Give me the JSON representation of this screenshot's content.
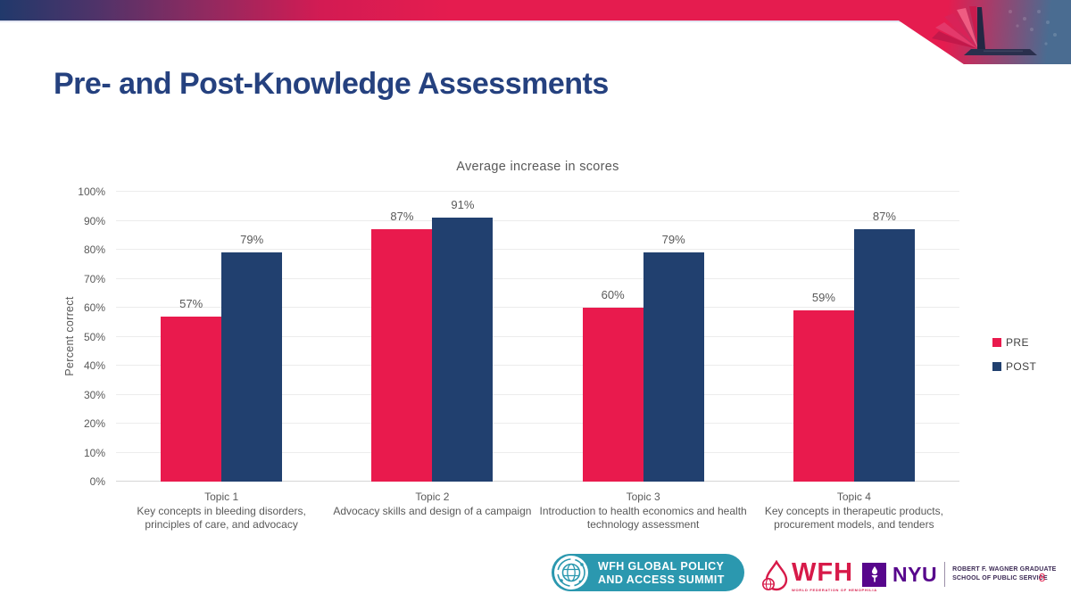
{
  "slide": {
    "title": "Pre- and Post-Knowledge Assessments",
    "page_number": "8"
  },
  "colors": {
    "banner_navy": "#21396B",
    "banner_purple": "#4F3369",
    "banner_crimson": "#E51C4F",
    "corner_blue": "#4A6C91",
    "title_blue": "#25417F",
    "pre": "#E91A4D",
    "post": "#21406F",
    "grid": "#ECECEC",
    "axis_text": "#595959",
    "summit_teal": "#2B98AF",
    "nyu_purple": "#57068C",
    "page_number_red": "#E0234F"
  },
  "chart_data": {
    "type": "bar",
    "title": "Average increase in scores",
    "xlabel": "",
    "ylabel": "Percent correct",
    "ylim": [
      0,
      100
    ],
    "ytick_step": 10,
    "ytick_suffix": "%",
    "grid": true,
    "legend_position": "right",
    "data_label_suffix": "%",
    "categories": [
      "Topic 1",
      "Topic 2",
      "Topic 3",
      "Topic 4"
    ],
    "category_descriptions": [
      "Key concepts in bleeding disorders, principles of care, and advocacy",
      "Advocacy skills and design of a campaign",
      "Introduction to health economics and health technology assessment",
      "Key concepts in therapeutic products, procurement models, and tenders"
    ],
    "series": [
      {
        "name": "PRE",
        "color": "#E91A4D",
        "values": [
          57,
          87,
          60,
          59
        ]
      },
      {
        "name": "POST",
        "color": "#21406F",
        "values": [
          79,
          91,
          79,
          87
        ]
      }
    ]
  },
  "footer": {
    "summit_logo": {
      "line1": "WFH GLOBAL POLICY",
      "line2": "AND ACCESS SUMMIT"
    },
    "wfh_logo": {
      "text": "WFH",
      "tagline": "WORLD FEDERATION OF HEMOPHILIA"
    },
    "nyu_logo": {
      "text": "NYU",
      "line1": "ROBERT F. WAGNER GRADUATE",
      "line2": "SCHOOL OF PUBLIC SERVICE"
    }
  }
}
